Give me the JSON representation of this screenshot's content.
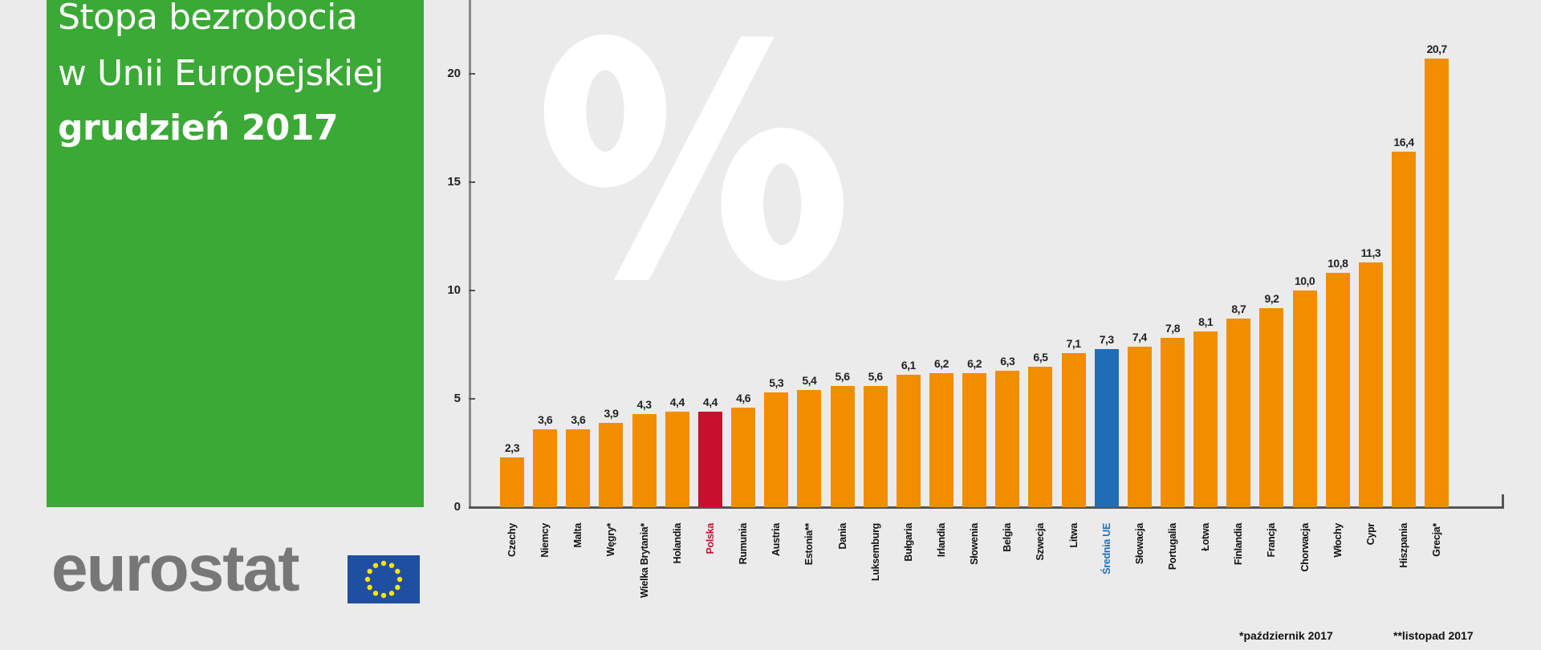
{
  "header": {
    "title_line1": "Stopa bezrobocia",
    "title_line2": "w Unii Europejskiej",
    "title_line3": "grudzień 2017",
    "box_color": "#3aa935"
  },
  "logo": {
    "text": "eurostat",
    "flag": "eu-flag-icon"
  },
  "decoration": {
    "symbol": "%"
  },
  "footnotes": {
    "one_star": "*październik 2017",
    "two_star": "**listopad 2017"
  },
  "colors": {
    "default_bar": "#f18e00",
    "poland_bar": "#c8102e",
    "eu_average_bar": "#1f6db5"
  },
  "chart_data": {
    "type": "bar",
    "title": "Stopa bezrobocia w Unii Europejskiej grudzień 2017",
    "xlabel": "",
    "ylabel": "%",
    "ylim": [
      0,
      22
    ],
    "yticks": [
      0,
      5,
      10,
      15,
      20
    ],
    "grid": false,
    "legend": null,
    "categories": [
      "Czechy",
      "Niemcy",
      "Malta",
      "Węgry*",
      "Wielka Brytania*",
      "Holandia",
      "Polska",
      "Rumunia",
      "Austria",
      "Estonia**",
      "Dania",
      "Luksemburg",
      "Bułgaria",
      "Irlandia",
      "Słowenia",
      "Belgia",
      "Szwecja",
      "Litwa",
      "Średnia UE",
      "Słowacja",
      "Portugalia",
      "Łotwa",
      "Finlandia",
      "Francja",
      "Chorwacja",
      "Włochy",
      "Cypr",
      "Hiszpania",
      "Grecja*"
    ],
    "values": [
      2.3,
      3.6,
      3.6,
      3.9,
      4.3,
      4.4,
      4.4,
      4.6,
      5.3,
      5.4,
      5.6,
      5.6,
      6.1,
      6.2,
      6.2,
      6.3,
      6.5,
      7.1,
      7.3,
      7.4,
      7.8,
      8.1,
      8.7,
      9.2,
      10.0,
      10.8,
      11.3,
      16.4,
      20.7
    ],
    "value_labels": [
      "2,3",
      "3,6",
      "3,6",
      "3,9",
      "4,3",
      "4,4",
      "4,4",
      "4,6",
      "5,3",
      "5,4",
      "5,6",
      "5,6",
      "6,1",
      "6,2",
      "6,2",
      "6,3",
      "6,5",
      "7,1",
      "7,3",
      "7,4",
      "7,8",
      "8,1",
      "8,7",
      "9,2",
      "10,0",
      "10,8",
      "11,3",
      "16,4",
      "20,7"
    ],
    "highlight": {
      "Polska": "#c8102e",
      "Średnia UE": "#1f6db5"
    },
    "annotations": [
      "*październik 2017",
      "**listopad 2017"
    ]
  }
}
